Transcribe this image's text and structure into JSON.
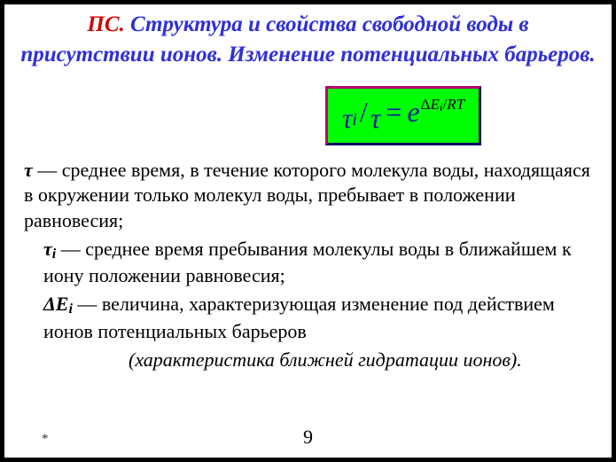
{
  "title": {
    "prefix": "ПС.",
    "rest": " Структура и свойства свободной воды в присутствии ионов. Изменение потенциальных барьеров."
  },
  "formula": {
    "tau": "τ",
    "sub_i": "i",
    "slash": "/",
    "eq": "=",
    "e": "e",
    "exp_delta": "Δ",
    "exp_E": "E",
    "exp_i": "i",
    "exp_slash": "/",
    "exp_R": "R",
    "exp_T": "T"
  },
  "para1": {
    "sym": "τ",
    "text": " — среднее  время, в течение которого молекула воды, находящаяся в окружении только молекул воды, пребывает в положении равновесия;"
  },
  "para2": {
    "sym": "τ",
    "sub": "i",
    "text": " — среднее время пребывания молекулы воды в ближайшем к иону положении равновесия;"
  },
  "para3": {
    "sym": "ΔE",
    "sub": "i",
    "text": " — величина, характеризующая изменение под действием ионов потенциальных барьеров"
  },
  "char_line": "(характеристика ближней гидратации ионов).",
  "footer": {
    "asterisk": "*",
    "page": "9"
  }
}
